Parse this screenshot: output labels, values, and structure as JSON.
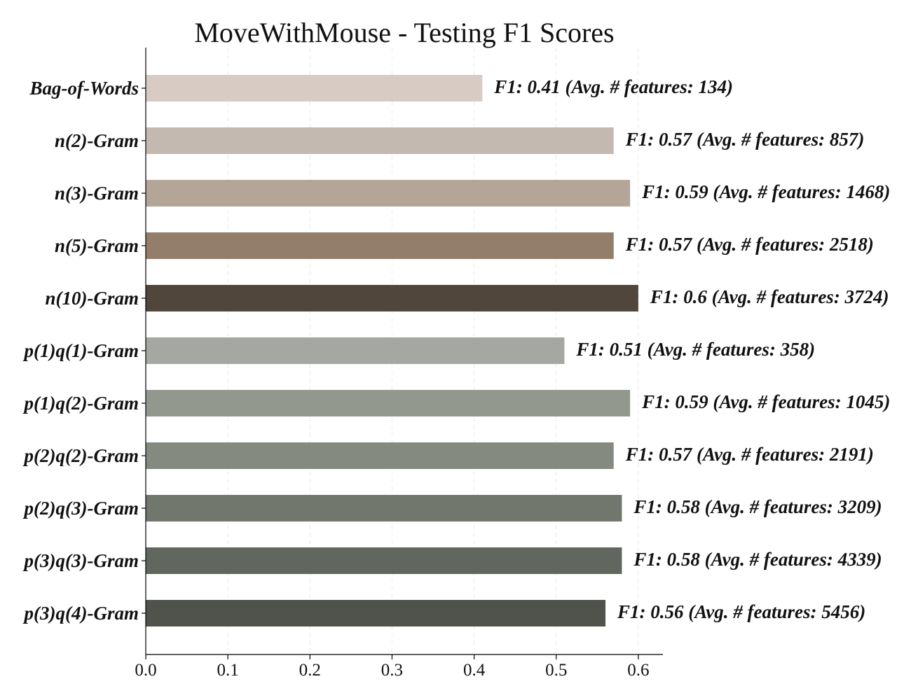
{
  "chart_data": {
    "type": "bar",
    "orientation": "horizontal",
    "title": "MoveWithMouse - Testing F1 Scores",
    "xlabel": "",
    "ylabel": "",
    "xlim": [
      0,
      0.63
    ],
    "grid": true,
    "x_ticks": [
      "0.0",
      "0.1",
      "0.2",
      "0.3",
      "0.4",
      "0.5",
      "0.6"
    ],
    "x_tick_values": [
      0,
      0.1,
      0.2,
      0.3,
      0.4,
      0.5,
      0.6
    ],
    "categories": [
      "Bag-of-Words",
      "n(2)-Gram",
      "n(3)-Gram",
      "n(5)-Gram",
      "n(10)-Gram",
      "p(1)q(1)-Gram",
      "p(1)q(2)-Gram",
      "p(2)q(2)-Gram",
      "p(2)q(3)-Gram",
      "p(3)q(3)-Gram",
      "p(3)q(4)-Gram"
    ],
    "values": [
      0.41,
      0.57,
      0.59,
      0.57,
      0.6,
      0.51,
      0.59,
      0.57,
      0.58,
      0.58,
      0.56
    ],
    "data_labels": [
      "F1: 0.41 (Avg. # features: 134)",
      "F1: 0.57 (Avg. # features: 857)",
      "F1: 0.59 (Avg. # features: 1468)",
      "F1: 0.57 (Avg. # features: 2518)",
      "F1: 0.6 (Avg. # features: 3724)",
      "F1: 0.51 (Avg. # features: 358)",
      "F1: 0.59 (Avg. # features: 1045)",
      "F1: 0.57 (Avg. # features: 2191)",
      "F1: 0.58 (Avg. # features: 3209)",
      "F1: 0.58 (Avg. # features: 4339)",
      "F1: 0.56 (Avg. # features: 5456)"
    ],
    "colors": [
      "#d8cbc3",
      "#c3b9b0",
      "#b3a597",
      "#937e6b",
      "#50463c",
      "#a5a8a2",
      "#93988f",
      "#848a80",
      "#72776d",
      "#61665e",
      "#50534b"
    ]
  }
}
